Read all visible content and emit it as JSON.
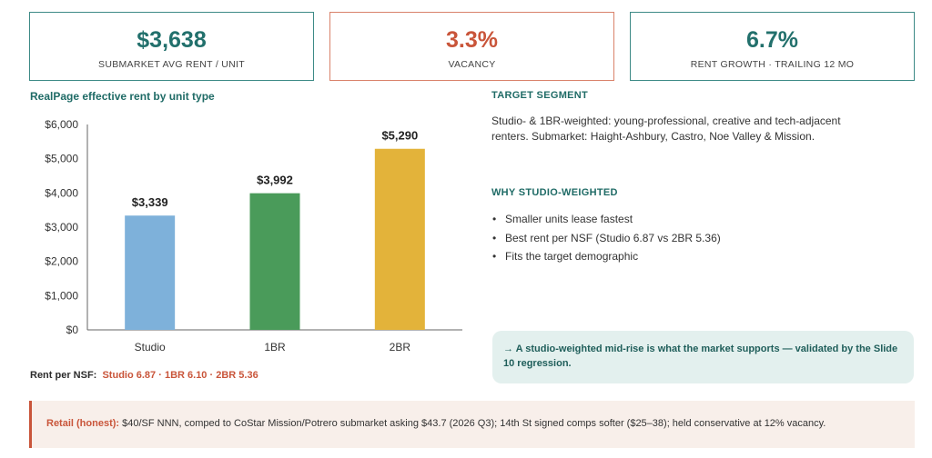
{
  "kpis": [
    {
      "value": "$3,638",
      "label": "SUBMARKET AVG RENT / UNIT"
    },
    {
      "value": "3.3%",
      "label": "VACANCY"
    },
    {
      "value": "6.7%",
      "label": "RENT GROWTH · TRAILING 12 MO"
    }
  ],
  "chart_data": {
    "type": "bar",
    "title": "RealPage effective rent by unit type",
    "categories": [
      "Studio",
      "1BR",
      "2BR"
    ],
    "values": [
      3339,
      3992,
      5290
    ],
    "value_labels": [
      "$3,339",
      "$3,992",
      "$5,290"
    ],
    "colors": [
      "#7eb1da",
      "#4a9b5a",
      "#e3b33a"
    ],
    "ylim": [
      0,
      6000
    ],
    "yticks": [
      0,
      1000,
      2000,
      3000,
      4000,
      5000,
      6000
    ],
    "ytick_labels": [
      "$0",
      "$1,000",
      "$2,000",
      "$3,000",
      "$4,000",
      "$5,000",
      "$6,000"
    ],
    "xlabel": "",
    "ylabel": "",
    "grid": false,
    "legend": "none"
  },
  "nsf": {
    "label": "Rent per NSF:",
    "studio": "Studio 6.87",
    "sep1": "·",
    "br1": "1BR 6.10",
    "sep2": "·",
    "br2": "2BR 5.36"
  },
  "target": {
    "title": "TARGET SEGMENT",
    "body": "Studio- & 1BR-weighted: young-professional, creative and tech-adjacent renters. Submarket: Haight-Ashbury, Castro, Noe Valley & Mission."
  },
  "why": {
    "title": "WHY STUDIO-WEIGHTED",
    "bullets": [
      "Smaller units lease fastest",
      "Best rent per NSF (Studio 6.87 vs 2BR 5.36)",
      "Fits the target demographic"
    ]
  },
  "callout": "→ A studio-weighted mid-rise is what the market supports — validated by the Slide 10 regression.",
  "retail": {
    "lead": "Retail (honest):",
    "text": " $40/SF NNN, comped to CoStar Mission/Potrero submarket asking $43.7 (2026 Q3); 14th St signed comps softer ($25–38); held conservative at 12% vacancy."
  }
}
